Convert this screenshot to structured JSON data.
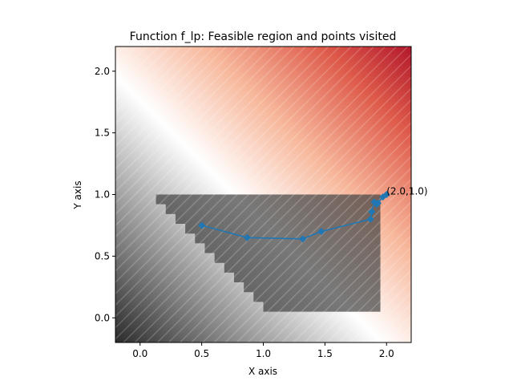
{
  "chart_data": {
    "type": "line",
    "title": "Function f_lp: Feasible region and points visited",
    "xlabel": "X axis",
    "ylabel": "Y axis",
    "xlim": [
      -0.2,
      2.2
    ],
    "ylim": [
      -0.2,
      2.2
    ],
    "xticks": [
      0.0,
      0.5,
      1.0,
      1.5,
      2.0
    ],
    "yticks": [
      0.0,
      0.5,
      1.0,
      1.5,
      2.0
    ],
    "xtick_labels": [
      "0.0",
      "0.5",
      "1.0",
      "1.5",
      "2.0"
    ],
    "ytick_labels": [
      "0.0",
      "0.5",
      "1.0",
      "1.5",
      "2.0"
    ],
    "grid": false,
    "background": {
      "type": "heatmap",
      "colormap": "gray to white to red",
      "low_color": "#2b2b2b",
      "mid_color": "#ffffff",
      "high_color": "#b2182b",
      "zero_level_x_plus_y": 1.3
    },
    "feasible_region": {
      "color": "#444444",
      "x_range": [
        0.05,
        1.95
      ],
      "y_range": [
        0.05,
        1.0
      ],
      "constraint": "x + y >= 1.05"
    },
    "series": [
      {
        "color": "#1f77b4",
        "points": [
          [
            0.5,
            0.75
          ],
          [
            0.87,
            0.65
          ],
          [
            1.32,
            0.64
          ],
          [
            1.47,
            0.7
          ],
          [
            1.87,
            0.8
          ],
          [
            1.88,
            0.86
          ],
          [
            1.9,
            0.94
          ],
          [
            1.92,
            0.92
          ],
          [
            1.93,
            0.93
          ],
          [
            1.97,
            0.98
          ],
          [
            2.0,
            1.0
          ]
        ]
      }
    ],
    "annotations": [
      {
        "text": "(2.0,1.0)",
        "x": 2.0,
        "y": 1.0
      }
    ]
  }
}
